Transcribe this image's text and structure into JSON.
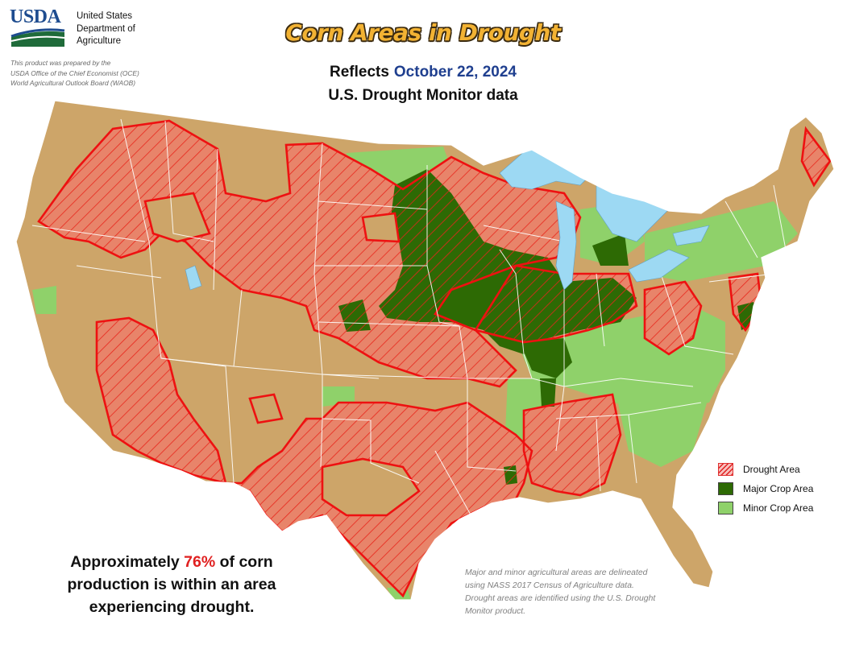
{
  "agency": {
    "logo_text": "USDA",
    "name_line1": "United States",
    "name_line2": "Department of",
    "name_line3": "Agriculture"
  },
  "prepared_by": {
    "line1": "This product was prepared by the",
    "line2": "USDA Office of the Chief Economist (OCE)",
    "line3": "World Agricultural Outlook Board (WAOB)"
  },
  "title": "Corn Areas in Drought",
  "reflects_label": "Reflects",
  "date": "October 22, 2024",
  "source_line": "U.S. Drought Monitor data",
  "legend": [
    {
      "label": "Drought Area",
      "key": "drought"
    },
    {
      "label": "Major Crop Area",
      "key": "major"
    },
    {
      "label": "Minor Crop Area",
      "key": "minor"
    }
  ],
  "summary": {
    "pre": "Approximately ",
    "percent": "76%",
    "post": " of corn production is within an area experiencing drought."
  },
  "note": "Major and minor agricultural areas are delineated using NASS 2017 Census of Agriculture data.  Drought areas are identified using the U.S. Drought Monitor product.",
  "colors": {
    "land": "#cda569",
    "major_crop": "#2d6a04",
    "minor_crop": "#8fd16a",
    "drought_outline": "#ee1111",
    "drought_fill": "#e8846a",
    "water": "#9dd9f3",
    "state_lines": "#ffffff"
  }
}
